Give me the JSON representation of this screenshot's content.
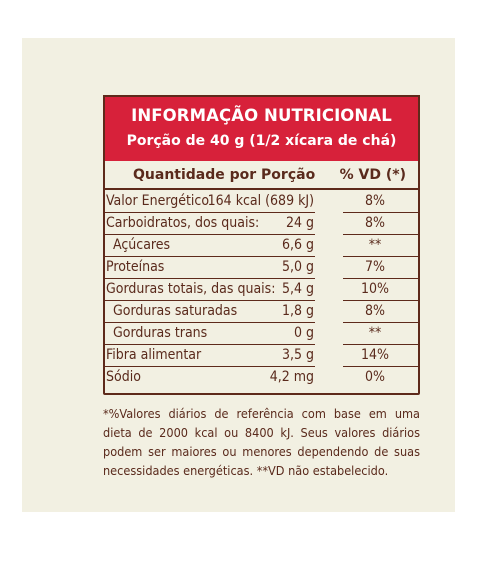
{
  "header": {
    "title": "INFORMAÇÃO NUTRICIONAL",
    "portion": "Porção de 40 g (1/2 xícara de chá)"
  },
  "columns": {
    "quantity": "Quantidade por Porção",
    "dv": "% VD (*)"
  },
  "rows": [
    {
      "label": "Valor Energético",
      "amount": "164 kcal (689 kJ)",
      "dv": "8%",
      "indent": false
    },
    {
      "label": "Carboidratos, dos quais:",
      "amount": "24 g",
      "dv": "8%",
      "indent": false
    },
    {
      "label": "Açúcares",
      "amount": "6,6 g",
      "dv": "**",
      "indent": true
    },
    {
      "label": "Proteínas",
      "amount": "5,0 g",
      "dv": "7%",
      "indent": false
    },
    {
      "label": "Gorduras totais, das quais:",
      "amount": "5,4 g",
      "dv": "10%",
      "indent": false
    },
    {
      "label": "Gorduras saturadas",
      "amount": "1,8 g",
      "dv": "8%",
      "indent": true
    },
    {
      "label": "Gorduras trans",
      "amount": "0 g",
      "dv": "**",
      "indent": true
    },
    {
      "label": "Fibra alimentar",
      "amount": "3,5 g",
      "dv": "14%",
      "indent": false
    },
    {
      "label": "Sódio",
      "amount": "4,2 mg",
      "dv": "0%",
      "indent": false
    }
  ],
  "footnote": "*%Valores diários de referência com base em uma dieta de 2000 kcal ou 8400 kJ. Seus valores diários podem ser maiores ou menores dependendo de suas necessidades energéticas. **VD não estabelecido.",
  "colors": {
    "header_red": "#d7213a",
    "text_brown": "#5a2a1c",
    "panel_cream": "#f2f0e2"
  }
}
